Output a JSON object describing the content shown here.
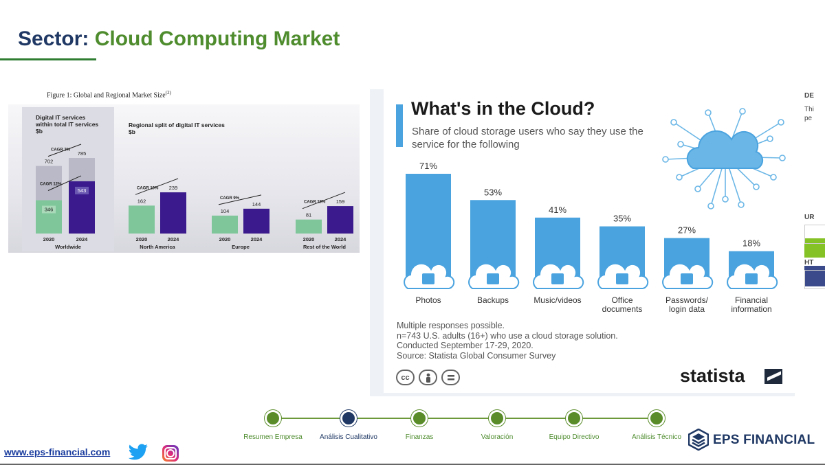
{
  "header": {
    "title_prefix": "Sector:",
    "title_main": "Cloud Computing Market"
  },
  "figure1": {
    "caption": "Figure 1: Global and Regional Market Size",
    "caption_sup": "(2)"
  },
  "chart_data": [
    {
      "type": "bar",
      "title": "Digital IT services within total IT services $b",
      "title_lines": [
        "Digital IT services",
        "within total IT services",
        "$b"
      ],
      "group_label": "Worldwide",
      "categories": [
        "2020",
        "2024"
      ],
      "series": [
        {
          "name": "Digital IT services",
          "values": [
            346,
            543
          ]
        },
        {
          "name": "Total IT services",
          "values": [
            702,
            785
          ]
        }
      ],
      "annotations": [
        "CAGR 3%",
        "CAGR 12%"
      ],
      "colors": {
        "2020": "#7fc79a",
        "2024": "#3a1a8c",
        "total": "#b8b8c6"
      }
    },
    {
      "type": "bar",
      "title": "Regional split of digital IT services $b",
      "title_lines": [
        "Regional split of digital IT services",
        "$b"
      ],
      "groups": [
        {
          "name": "North America",
          "categories": [
            "2020",
            "2024"
          ],
          "values": [
            162,
            239
          ],
          "cagr": "CAGR 10%"
        },
        {
          "name": "Europe",
          "categories": [
            "2020",
            "2024"
          ],
          "values": [
            104,
            144
          ],
          "cagr": "CAGR 9%"
        },
        {
          "name": "Rest of the World",
          "categories": [
            "2020",
            "2024"
          ],
          "values": [
            81,
            159
          ],
          "cagr": "CAGR 19%"
        }
      ],
      "ylim": [
        0,
        260
      ]
    },
    {
      "type": "bar",
      "title": "What's in the Cloud?",
      "subtitle": "Share of cloud storage users who say they use the service for the following",
      "categories": [
        {
          "lines": [
            "Photos"
          ],
          "icon": "photo-icon"
        },
        {
          "lines": [
            "Backups"
          ],
          "icon": "lock-sync-icon"
        },
        {
          "lines": [
            "Music/videos"
          ],
          "icon": "music-film-icon"
        },
        {
          "lines": [
            "Office",
            "documents"
          ],
          "icon": "document-icon"
        },
        {
          "lines": [
            "Passwords/",
            "login data"
          ],
          "icon": "password-icon"
        },
        {
          "lines": [
            "Financial",
            "information"
          ],
          "icon": "dollar-document-icon"
        }
      ],
      "values": [
        71,
        53,
        41,
        35,
        27,
        18
      ],
      "value_labels": [
        "71%",
        "53%",
        "41%",
        "35%",
        "27%",
        "18%"
      ],
      "ylim": [
        0,
        100
      ],
      "bar_color": "#4aa3df"
    }
  ],
  "statista": {
    "title": "What's in the Cloud?",
    "subtitle": "Share of cloud storage users who say they use the service for the following",
    "notes": [
      "Multiple responses possible.",
      "n=743 U.S. adults (16+) who use a cloud storage solution.",
      "Conducted September 17-29, 2020.",
      "Source: Statista Global Consumer Survey"
    ],
    "cc_icons": [
      "cc",
      "by",
      "nd"
    ],
    "logo": "statista"
  },
  "side_panel": {
    "labels": [
      "DE",
      "Thi",
      "pe",
      "UR",
      "HT"
    ]
  },
  "timeline": {
    "steps": [
      {
        "label": "Resumen Empresa",
        "active": false
      },
      {
        "label": "Análisis Cualitativo",
        "active": true
      },
      {
        "label": "Finanzas",
        "active": false
      },
      {
        "label": "Valoración",
        "active": false
      },
      {
        "label": "Equipo Directivo",
        "active": false
      },
      {
        "label": "Análisis Técnico",
        "active": false
      }
    ]
  },
  "footer": {
    "website": "www.eps-financial.com",
    "brand": "EPS FINANCIAL"
  },
  "colors": {
    "navy": "#1f3864",
    "green": "#4e8c2e",
    "statista_blue": "#4aa3df"
  }
}
